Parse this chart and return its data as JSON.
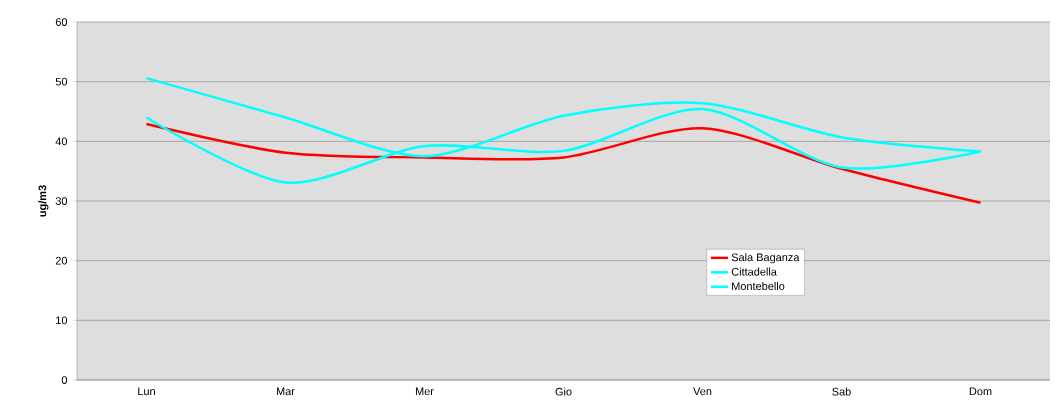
{
  "chart_data": {
    "type": "line",
    "ylabel": "ug/m3",
    "categories": [
      "Lun",
      "Mar",
      "Mer",
      "Gio",
      "Ven",
      "Sab",
      "Dom"
    ],
    "series": [
      {
        "name": "Sala Baganza",
        "color": "#ff0000",
        "values": [
          42.9,
          38.1,
          37.3,
          37.3,
          42.2,
          35.4,
          29.7
        ]
      },
      {
        "name": "Cittadella",
        "color": "#00ffff",
        "values": [
          44.0,
          33.1,
          39.2,
          38.4,
          45.4,
          35.6,
          38.3
        ]
      },
      {
        "name": "Montebello",
        "color": "#00ffff",
        "values": [
          50.6,
          44.0,
          37.5,
          44.3,
          46.4,
          40.7,
          38.3
        ]
      }
    ],
    "ylim": [
      0,
      60
    ],
    "yticks": [
      0,
      10,
      20,
      30,
      40,
      50,
      60
    ],
    "grid": "y",
    "legend": "bottom right",
    "marker": "none",
    "line_style": "solid"
  }
}
